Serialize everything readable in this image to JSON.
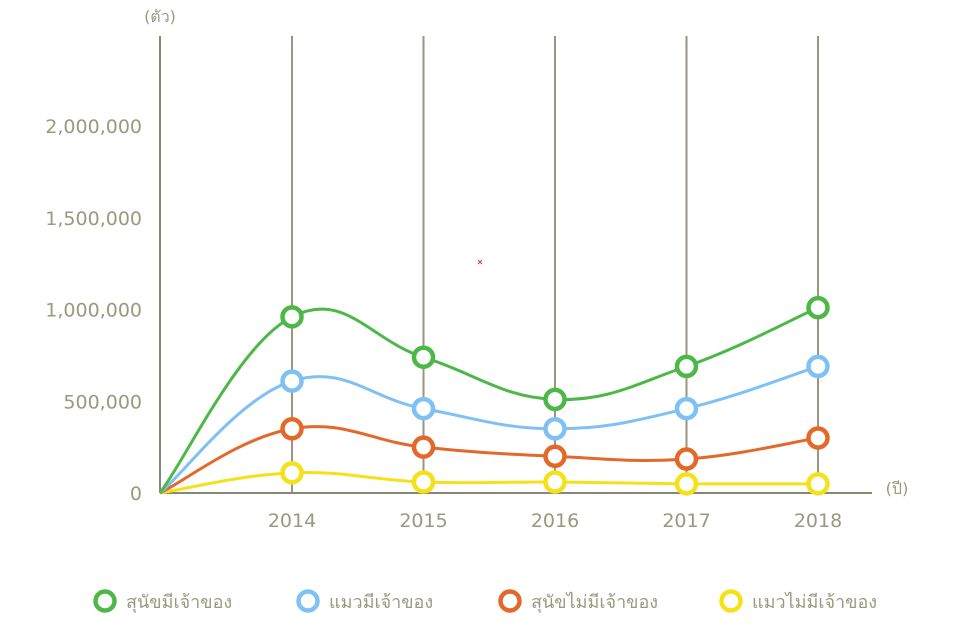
{
  "chart_data": {
    "type": "line",
    "ylabel": "(ตัว)",
    "xlabel": "(ปี)",
    "categories": [
      "2014",
      "2015",
      "2016",
      "2017",
      "2018"
    ],
    "yticks": [
      0,
      500000,
      1000000,
      1500000,
      2000000
    ],
    "ytick_labels": [
      "0",
      "500,000",
      "1,000,000",
      "1,500,000",
      "2,000,000"
    ],
    "ylim": [
      0,
      2450000
    ],
    "grid": "vertical",
    "legend_position": "bottom",
    "series": [
      {
        "name": "สุนัขมีเจ้าของ",
        "color": "#4db848",
        "values": [
          960000,
          740000,
          510000,
          690000,
          1010000
        ]
      },
      {
        "name": "แมวมีเจ้าของ",
        "color": "#7fc0f5",
        "values": [
          610000,
          460000,
          350000,
          460000,
          690000
        ]
      },
      {
        "name": "สุนัขไม่มีเจ้าของ",
        "color": "#e2692a",
        "values": [
          350000,
          250000,
          200000,
          185000,
          300000
        ]
      },
      {
        "name": "แมวไม่มีเจ้าของ",
        "color": "#f5e11a",
        "values": [
          110000,
          60000,
          60000,
          50000,
          50000
        ]
      }
    ]
  }
}
